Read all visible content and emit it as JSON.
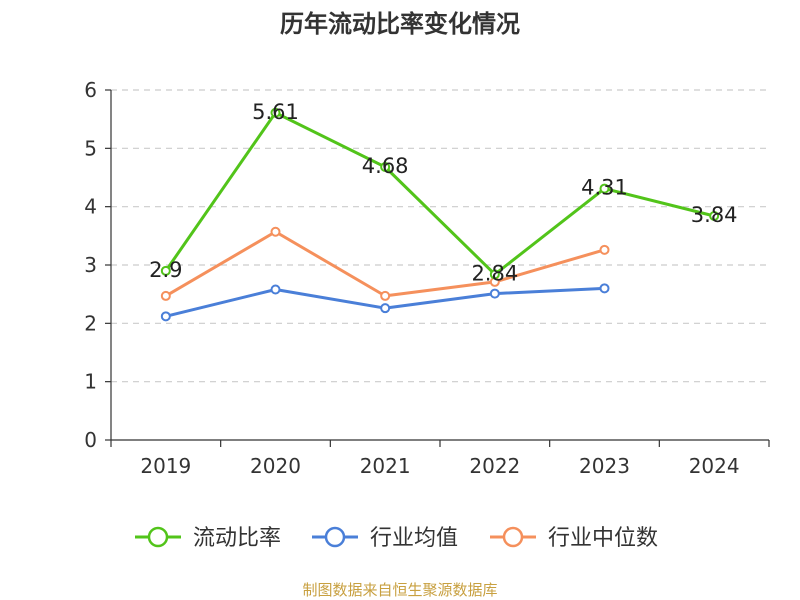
{
  "chart_data": {
    "type": "line",
    "title": "历年流动比率变化情况",
    "xlabel": "",
    "ylabel": "",
    "categories": [
      "2019",
      "2020",
      "2021",
      "2022",
      "2023",
      "2024"
    ],
    "ylim": [
      0,
      6
    ],
    "yticks": [
      "0",
      "1",
      "2",
      "3",
      "4",
      "5",
      "6"
    ],
    "grid": true,
    "legend_position": "bottom",
    "series": [
      {
        "name": "流动比率",
        "color": "#52c41a",
        "values": [
          2.9,
          5.61,
          4.68,
          2.84,
          4.31,
          3.84
        ],
        "labels": [
          "2.9",
          "5.61",
          "4.68",
          "2.84",
          "4.31",
          "3.84"
        ]
      },
      {
        "name": "行业均值",
        "color": "#4a7fd8",
        "values": [
          2.12,
          2.58,
          2.26,
          2.51,
          2.6,
          null
        ]
      },
      {
        "name": "行业中位数",
        "color": "#f5905c",
        "values": [
          2.47,
          3.57,
          2.47,
          2.71,
          3.26,
          null
        ]
      }
    ]
  },
  "footer": {
    "source": "制图数据来自恒生聚源数据库"
  }
}
